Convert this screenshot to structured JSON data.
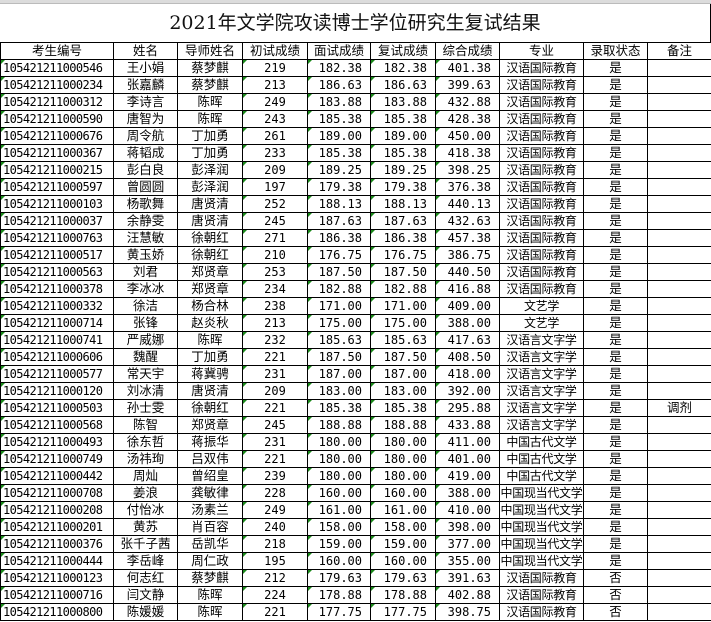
{
  "title": "2021年文学院攻读博士学位研究生复试结果",
  "headers": [
    "考生编号",
    "姓名",
    "导师姓名",
    "初试成绩",
    "面试成绩",
    "复试成绩",
    "综合成绩",
    "专业",
    "录取状态",
    "备注"
  ],
  "rows": [
    [
      "105421211000546",
      "王小娟",
      "蔡梦麒",
      "219",
      "182.38",
      "182.38",
      "401.38",
      "汉语国际教育",
      "是",
      ""
    ],
    [
      "105421211000234",
      "张嘉麟",
      "蔡梦麒",
      "213",
      "186.63",
      "186.63",
      "399.63",
      "汉语国际教育",
      "是",
      ""
    ],
    [
      "105421211000312",
      "李诗言",
      "陈晖",
      "249",
      "183.88",
      "183.88",
      "432.88",
      "汉语国际教育",
      "是",
      ""
    ],
    [
      "105421211000590",
      "唐智为",
      "陈晖",
      "243",
      "185.38",
      "185.38",
      "428.38",
      "汉语国际教育",
      "是",
      ""
    ],
    [
      "105421211000676",
      "周令航",
      "丁加勇",
      "261",
      "189.00",
      "189.00",
      "450.00",
      "汉语国际教育",
      "是",
      ""
    ],
    [
      "105421211000367",
      "蒋韬成",
      "丁加勇",
      "233",
      "185.38",
      "185.38",
      "418.38",
      "汉语国际教育",
      "是",
      ""
    ],
    [
      "105421211000215",
      "彭白良",
      "彭泽润",
      "209",
      "189.25",
      "189.25",
      "398.25",
      "汉语国际教育",
      "是",
      ""
    ],
    [
      "105421211000597",
      "曾圆圆",
      "彭泽润",
      "197",
      "179.38",
      "179.38",
      "376.38",
      "汉语国际教育",
      "是",
      ""
    ],
    [
      "105421211000103",
      "杨歌舞",
      "唐贤清",
      "252",
      "188.13",
      "188.13",
      "440.13",
      "汉语国际教育",
      "是",
      ""
    ],
    [
      "105421211000037",
      "余静雯",
      "唐贤清",
      "245",
      "187.63",
      "187.63",
      "432.63",
      "汉语国际教育",
      "是",
      ""
    ],
    [
      "105421211000763",
      "汪慧敏",
      "徐朝红",
      "271",
      "186.38",
      "186.38",
      "457.38",
      "汉语国际教育",
      "是",
      ""
    ],
    [
      "105421211000517",
      "黄玉娇",
      "徐朝红",
      "210",
      "176.75",
      "176.75",
      "386.75",
      "汉语国际教育",
      "是",
      ""
    ],
    [
      "105421211000563",
      "刘君",
      "郑贤章",
      "253",
      "187.50",
      "187.50",
      "440.50",
      "汉语国际教育",
      "是",
      ""
    ],
    [
      "105421211000378",
      "李冰冰",
      "郑贤章",
      "234",
      "182.88",
      "182.88",
      "416.88",
      "汉语国际教育",
      "是",
      ""
    ],
    [
      "105421211000332",
      "徐洁",
      "杨合林",
      "238",
      "171.00",
      "171.00",
      "409.00",
      "文艺学",
      "是",
      ""
    ],
    [
      "105421211000714",
      "张锋",
      "赵炎秋",
      "213",
      "175.00",
      "175.00",
      "388.00",
      "文艺学",
      "是",
      ""
    ],
    [
      "105421211000741",
      "严威娜",
      "陈晖",
      "232",
      "185.63",
      "185.63",
      "417.63",
      "汉语言文字学",
      "是",
      ""
    ],
    [
      "105421211000606",
      "魏醒",
      "丁加勇",
      "221",
      "187.50",
      "187.50",
      "408.50",
      "汉语言文字学",
      "是",
      ""
    ],
    [
      "105421211000577",
      "常天宇",
      "蒋冀骋",
      "231",
      "187.00",
      "187.00",
      "418.00",
      "汉语言文字学",
      "是",
      ""
    ],
    [
      "105421211000120",
      "刘冰清",
      "唐贤清",
      "209",
      "183.00",
      "183.00",
      "392.00",
      "汉语言文字学",
      "是",
      ""
    ],
    [
      "105421211000503",
      "孙士雯",
      "徐朝红",
      "221",
      "185.38",
      "185.38",
      "295.88",
      "汉语言文字学",
      "是",
      "调剂"
    ],
    [
      "105421211000568",
      "陈智",
      "郑贤章",
      "245",
      "188.88",
      "188.88",
      "433.88",
      "汉语言文字学",
      "是",
      ""
    ],
    [
      "105421211000493",
      "徐东哲",
      "蒋振华",
      "231",
      "180.00",
      "180.00",
      "411.00",
      "中国古代文学",
      "是",
      ""
    ],
    [
      "105421211000749",
      "汤祎珣",
      "吕双伟",
      "221",
      "180.00",
      "180.00",
      "401.00",
      "中国古代文学",
      "是",
      ""
    ],
    [
      "105421211000442",
      "周灿",
      "曾绍皇",
      "239",
      "180.00",
      "180.00",
      "419.00",
      "中国古代文学",
      "是",
      ""
    ],
    [
      "105421211000708",
      "姜浪",
      "龚敏律",
      "228",
      "160.00",
      "160.00",
      "388.00",
      "中国现当代文学",
      "是",
      ""
    ],
    [
      "105421211000208",
      "付怡冰",
      "汤素兰",
      "249",
      "161.00",
      "161.00",
      "410.00",
      "中国现当代文学",
      "是",
      ""
    ],
    [
      "105421211000201",
      "黄苏",
      "肖百容",
      "240",
      "158.00",
      "158.00",
      "398.00",
      "中国现当代文学",
      "是",
      ""
    ],
    [
      "105421211000376",
      "张千子茜",
      "岳凯华",
      "218",
      "159.00",
      "159.00",
      "377.00",
      "中国现当代文学",
      "是",
      ""
    ],
    [
      "105421211000444",
      "李岳峰",
      "周仁政",
      "195",
      "160.00",
      "160.00",
      "355.00",
      "中国现当代文学",
      "是",
      ""
    ],
    [
      "105421211000123",
      "何志红",
      "蔡梦麒",
      "212",
      "179.63",
      "179.63",
      "391.63",
      "汉语国际教育",
      "否",
      ""
    ],
    [
      "105421211000716",
      "闫文静",
      "陈晖",
      "224",
      "178.88",
      "178.88",
      "402.88",
      "汉语国际教育",
      "否",
      ""
    ],
    [
      "105421211000800",
      "陈媛媛",
      "陈晖",
      "221",
      "177.75",
      "177.75",
      "398.75",
      "汉语国际教育",
      "否",
      ""
    ]
  ],
  "colors": {
    "error_indicator": "#1a8a1a",
    "grid": "#000000"
  }
}
